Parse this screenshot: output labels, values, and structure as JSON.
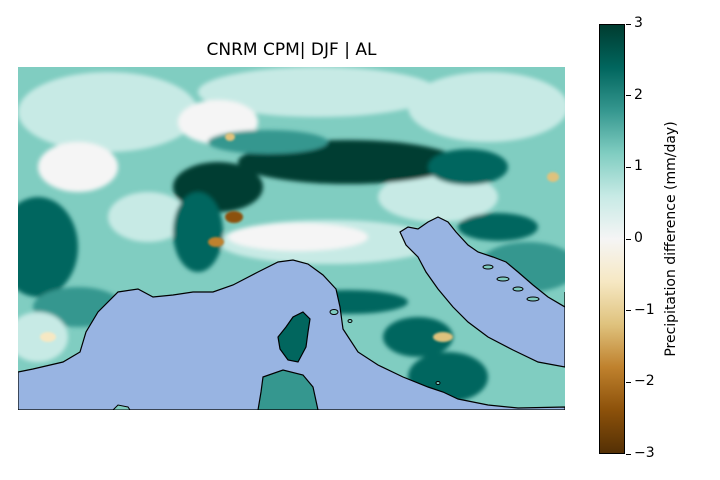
{
  "title": "CNRM CPM| DJF | AL",
  "colorbar": {
    "label": "Precipitation difference (mm/day)",
    "ticks": [
      "3",
      "2",
      "1",
      "0",
      "−1",
      "−2",
      "−3"
    ],
    "range": [
      -3,
      3
    ],
    "colormap": "BrBG",
    "stops": [
      "#543005",
      "#8c510a",
      "#bf812d",
      "#dfc27d",
      "#f6e8c3",
      "#f5f5f5",
      "#c7eae5",
      "#80cdc1",
      "#35978f",
      "#01665e",
      "#003c30"
    ]
  },
  "map": {
    "region": "Alpine region, Northern Italy, Corsica, Adriatic Sea",
    "sea_color": "#98b4e2",
    "land_colors": [
      "#003c30",
      "#01665e",
      "#35978f",
      "#80cdc1",
      "#c7eae5",
      "#f5f5f5",
      "#dfc27d",
      "#bf812d"
    ]
  }
}
